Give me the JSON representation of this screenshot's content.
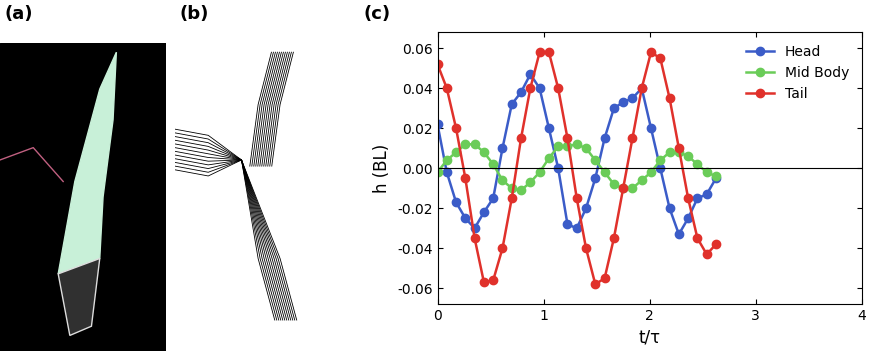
{
  "panel_labels": [
    "(a)",
    "(b)",
    "(c)"
  ],
  "chart_data": {
    "type": "line",
    "x_label": "t/τ",
    "y_label": "h (BL)",
    "x": [
      0,
      0.0875,
      0.175,
      0.2625,
      0.35,
      0.4375,
      0.525,
      0.6125,
      0.7,
      0.7875,
      0.875,
      0.9625,
      1.05,
      1.1375,
      1.225,
      1.3125,
      1.4,
      1.4875,
      1.575,
      1.6625,
      1.75,
      1.8375,
      1.925,
      2.0125,
      2.1,
      2.1875,
      2.275,
      2.3625,
      2.45,
      2.5375,
      2.625
    ],
    "series": [
      {
        "name": "Head",
        "color": "#3b5cc8",
        "marker": "o",
        "line_style": "solid",
        "values": [
          0.022,
          -0.002,
          -0.017,
          -0.025,
          -0.03,
          -0.022,
          -0.015,
          0.01,
          0.032,
          0.038,
          0.047,
          0.04,
          0.02,
          0.0,
          -0.028,
          -0.03,
          -0.02,
          -0.005,
          0.015,
          0.03,
          0.033,
          0.035,
          0.04,
          0.02,
          0.0,
          -0.02,
          -0.033,
          -0.025,
          -0.015,
          -0.013,
          -0.005
        ]
      },
      {
        "name": "Mid Body",
        "color": "#6acc58",
        "marker": "o",
        "line_style": "solid",
        "values": [
          -0.002,
          0.004,
          0.008,
          0.012,
          0.012,
          0.008,
          0.002,
          -0.006,
          -0.01,
          -0.011,
          -0.007,
          -0.002,
          0.005,
          0.011,
          0.011,
          0.012,
          0.01,
          0.004,
          -0.002,
          -0.008,
          -0.01,
          -0.01,
          -0.006,
          -0.002,
          0.004,
          0.008,
          0.008,
          0.006,
          0.002,
          -0.002,
          -0.004
        ]
      },
      {
        "name": "Tail",
        "color": "#e0312b",
        "marker": "o",
        "line_style": "solid",
        "values": [
          0.052,
          0.04,
          0.02,
          -0.005,
          -0.035,
          -0.057,
          -0.056,
          -0.04,
          -0.015,
          0.015,
          0.04,
          0.058,
          0.058,
          0.04,
          0.015,
          -0.015,
          -0.04,
          -0.058,
          -0.055,
          -0.035,
          -0.01,
          0.015,
          0.04,
          0.058,
          0.055,
          0.035,
          0.01,
          -0.015,
          -0.035,
          -0.043,
          -0.038
        ]
      }
    ],
    "hline": 0,
    "xlim": [
      0,
      4
    ],
    "xticks": [
      0,
      1,
      2,
      3,
      4
    ],
    "ylim": [
      -0.068,
      0.068
    ],
    "yticks": [
      -0.06,
      -0.04,
      -0.02,
      {
        "value": 0,
        "label": "0.00"
      },
      0.02,
      0.04,
      0.06
    ],
    "grid": false,
    "legend": "upper right"
  }
}
